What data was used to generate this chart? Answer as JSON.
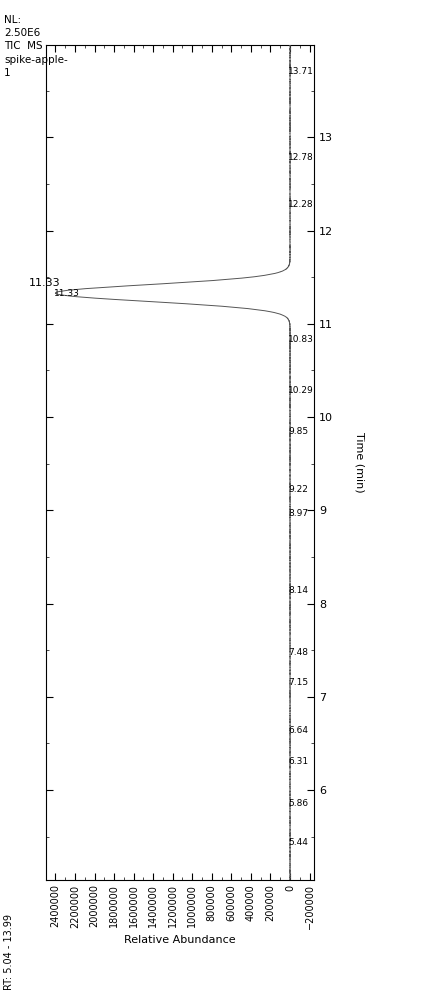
{
  "title_text": "NL:\n2.50E6\nTIC  MS\nspike-apple-\n1",
  "rt_label": "RT: 5.04 - 13.99",
  "time_label": "Time (min)",
  "abundance_label": "Relative Abundance",
  "xmin": 5.04,
  "xmax": 13.99,
  "ymin": -200000,
  "ymax": 2500000,
  "abundance_ticks": [
    2400000,
    2200000,
    2000000,
    1800000,
    1600000,
    1400000,
    1200000,
    1000000,
    800000,
    600000,
    400000,
    200000,
    0,
    -200000
  ],
  "time_ticks_major": [
    6,
    7,
    8,
    9,
    10,
    11,
    12,
    13
  ],
  "peak_time": 11.33,
  "peak_height": 2400000,
  "peak_sigma": 0.09,
  "rt_annotations": [
    5.44,
    5.86,
    6.31,
    6.64,
    7.15,
    7.48,
    8.14,
    8.97,
    9.22,
    9.85,
    10.29,
    10.83,
    11.33,
    12.28,
    12.78,
    13.71
  ],
  "background_color": "#ffffff",
  "line_color": "#555555",
  "annotation_color": "#000000",
  "spine_color": "#000000",
  "figwidth": 4.31,
  "figheight": 10.0,
  "dpi": 100
}
